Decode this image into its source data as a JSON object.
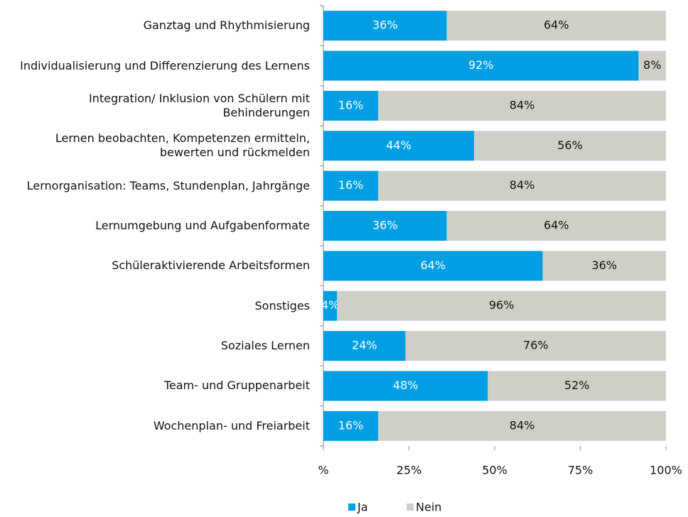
{
  "chart_data": {
    "type": "stacked-bar-horizontal",
    "categories": [
      "Ganztag und Rhythmisierung",
      "Individualisierung und Differenzierung des Lernens",
      "Integration/ Inklusion von Schülern mit Behinderungen",
      "Lernen beobachten, Kompetenzen ermitteln, bewerten und rückmelden",
      "Lernorganisation: Teams, Stundenplan, Jahrgänge",
      "Lernumgebung und Aufgabenformate",
      "Schüleraktivierende Arbeitsformen",
      "Sonstiges",
      "Soziales Lernen",
      "Team- und Gruppenarbeit",
      "Wochenplan- und Freiarbeit"
    ],
    "series": [
      {
        "name": "Ja",
        "color": "#009fe3",
        "values": [
          36,
          92,
          16,
          44,
          16,
          36,
          64,
          4,
          24,
          48,
          16
        ],
        "value_labels": [
          "36%",
          "92%",
          "16%",
          "44%",
          "16%",
          "36%",
          "64%",
          "4%",
          "24%",
          "48%",
          "16%"
        ]
      },
      {
        "name": "Nein",
        "color": "#d0cfc7",
        "values": [
          64,
          8,
          84,
          56,
          84,
          64,
          36,
          96,
          76,
          52,
          84
        ],
        "value_labels": [
          "64%",
          "8%",
          "84%",
          "56%",
          "84%",
          "64%",
          "36%",
          "96%",
          "76%",
          "52%",
          "84%"
        ]
      }
    ],
    "xlim": [
      0,
      100
    ],
    "xticks": [
      {
        "value": 0,
        "label": "%"
      },
      {
        "value": 25,
        "label": "25%"
      },
      {
        "value": 50,
        "label": "50%"
      },
      {
        "value": 75,
        "label": "75%"
      },
      {
        "value": 100,
        "label": "100%"
      }
    ],
    "legend": "bottom"
  }
}
